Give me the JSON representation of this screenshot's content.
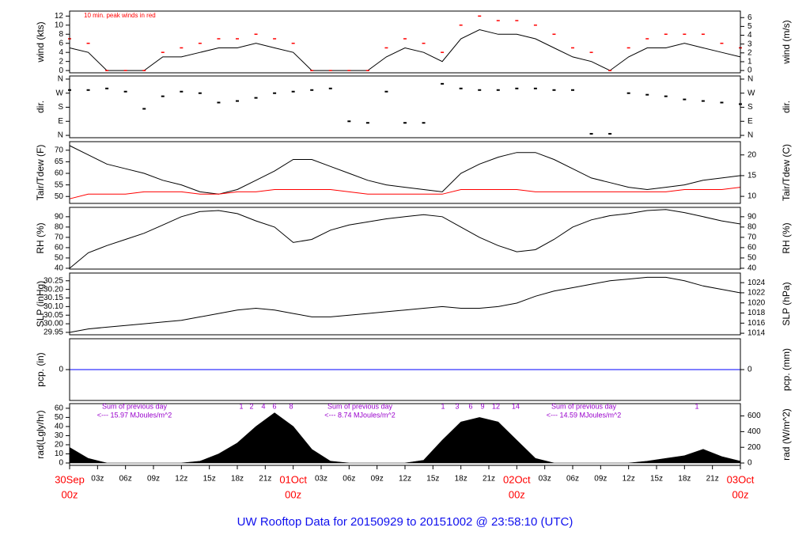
{
  "title": "UW Rooftop Data for 20150929  to  20151002 @ 23:58:10  (UTC)",
  "chart_data": [
    {
      "type": "line",
      "ylabel": "wind (kts)",
      "y2label": "wind (m/s)",
      "annotations": [
        "10 min. peak winds in red"
      ],
      "xlim": [
        0,
        72
      ],
      "ylim": [
        -0.5,
        13.1
      ],
      "yticks": [
        0,
        2,
        4,
        6,
        8,
        10,
        12
      ],
      "y2lim": [
        -0.26,
        6.74
      ],
      "y2ticks": [
        0,
        1,
        2,
        3,
        4,
        5,
        6
      ],
      "x": [
        0,
        2,
        4,
        6,
        8,
        10,
        12,
        14,
        16,
        18,
        20,
        22,
        24,
        26,
        28,
        30,
        32,
        34,
        36,
        38,
        40,
        42,
        44,
        46,
        48,
        50,
        52,
        54,
        56,
        58,
        60,
        62,
        64,
        66,
        68,
        70,
        72
      ],
      "series": [
        {
          "color": "#000000",
          "values": [
            5,
            4,
            0,
            0,
            0,
            3,
            3,
            4,
            5,
            5,
            6,
            5,
            4,
            0,
            0,
            0,
            0,
            3,
            5,
            4,
            2,
            7,
            9,
            8,
            8,
            7,
            5,
            3,
            2,
            0,
            3,
            5,
            5,
            6,
            5,
            4,
            3
          ]
        },
        {
          "color": "#ff0000",
          "marker": "dash",
          "values": [
            7,
            6,
            0,
            0,
            0,
            4,
            5,
            6,
            7,
            7,
            8,
            7,
            6,
            0,
            0,
            0,
            0,
            5,
            7,
            6,
            4,
            10,
            12,
            11,
            11,
            10,
            8,
            5,
            4,
            0,
            5,
            7,
            8,
            8,
            8,
            6,
            5
          ]
        }
      ]
    },
    {
      "type": "scatter",
      "ylabel": "dir.",
      "y2label": "dir.",
      "xlim": [
        0,
        72
      ],
      "ylim": [
        -15,
        380
      ],
      "yticks": [
        {
          "value": 0,
          "label": "N"
        },
        {
          "value": 90,
          "label": "E"
        },
        {
          "value": 180,
          "label": "S"
        },
        {
          "value": 270,
          "label": "W"
        },
        {
          "value": 360,
          "label": "N"
        }
      ],
      "y2lim": [
        -15,
        380
      ],
      "y2ticks": [
        {
          "value": 0,
          "label": "N"
        },
        {
          "value": 90,
          "label": "E"
        },
        {
          "value": 180,
          "label": "S"
        },
        {
          "value": 270,
          "label": "W"
        },
        {
          "value": 360,
          "label": "N"
        }
      ],
      "x": [
        0,
        2,
        4,
        6,
        8,
        10,
        12,
        14,
        16,
        18,
        20,
        22,
        24,
        26,
        28,
        30,
        32,
        34,
        36,
        38,
        40,
        42,
        44,
        46,
        48,
        50,
        52,
        54,
        56,
        58,
        60,
        62,
        64,
        66,
        68,
        70,
        72
      ],
      "series": [
        {
          "color": "#000000",
          "values": [
            290,
            290,
            300,
            280,
            170,
            250,
            280,
            270,
            210,
            220,
            240,
            270,
            280,
            290,
            300,
            90,
            80,
            280,
            80,
            80,
            330,
            300,
            290,
            290,
            300,
            300,
            290,
            290,
            10,
            10,
            270,
            260,
            250,
            230,
            220,
            210,
            200
          ]
        }
      ]
    },
    {
      "type": "line",
      "ylabel": "Tair/Tdew (F)",
      "y2label": "Tair/Tdew (C)",
      "xlim": [
        0,
        72
      ],
      "ylim": [
        47,
        73.7
      ],
      "yticks": [
        50,
        55,
        60,
        65,
        70
      ],
      "y2lim": [
        8.3,
        23.2
      ],
      "y2ticks": [
        10,
        15,
        20
      ],
      "x": [
        0,
        2,
        4,
        6,
        8,
        10,
        12,
        14,
        16,
        18,
        20,
        22,
        24,
        26,
        28,
        30,
        32,
        34,
        36,
        38,
        40,
        42,
        44,
        46,
        48,
        50,
        52,
        54,
        56,
        58,
        60,
        62,
        64,
        66,
        68,
        70,
        72
      ],
      "series": [
        {
          "color": "#000000",
          "values": [
            72,
            68,
            64,
            62,
            60,
            57,
            55,
            52,
            51,
            53,
            57,
            61,
            66,
            66,
            63,
            60,
            57,
            55,
            54,
            53,
            52,
            60,
            64,
            67,
            69,
            69,
            66,
            62,
            58,
            56,
            54,
            53,
            54,
            55,
            57,
            58,
            59
          ]
        },
        {
          "color": "#ff0000",
          "values": [
            49,
            51,
            51,
            51,
            52,
            52,
            52,
            51,
            51,
            52,
            52,
            53,
            53,
            53,
            53,
            52,
            51,
            51,
            51,
            51,
            51,
            53,
            53,
            53,
            53,
            52,
            52,
            52,
            52,
            52,
            52,
            52,
            52,
            53,
            53,
            53,
            54
          ]
        }
      ]
    },
    {
      "type": "line",
      "ylabel": "RH (%)",
      "y2label": "RH (%)",
      "xlim": [
        0,
        72
      ],
      "ylim": [
        39.2,
        99.1
      ],
      "yticks": [
        40,
        50,
        60,
        70,
        80,
        90
      ],
      "y2lim": [
        39.2,
        99.1
      ],
      "y2ticks": [
        40,
        50,
        60,
        70,
        80,
        90
      ],
      "x": [
        0,
        2,
        4,
        6,
        8,
        10,
        12,
        14,
        16,
        18,
        20,
        22,
        24,
        26,
        28,
        30,
        32,
        34,
        36,
        38,
        40,
        42,
        44,
        46,
        48,
        50,
        52,
        54,
        56,
        58,
        60,
        62,
        64,
        66,
        68,
        70,
        72
      ],
      "series": [
        {
          "color": "#000000",
          "values": [
            40,
            55,
            62,
            68,
            74,
            82,
            90,
            95,
            96,
            93,
            86,
            80,
            65,
            68,
            77,
            82,
            85,
            88,
            90,
            92,
            90,
            80,
            70,
            62,
            56,
            58,
            68,
            80,
            87,
            91,
            93,
            96,
            97,
            94,
            90,
            86,
            83
          ]
        }
      ]
    },
    {
      "type": "line",
      "ylabel": "SLP (inHg)",
      "y2label": "SLP (hPa)",
      "xlim": [
        0,
        72
      ],
      "ylim": [
        29.936,
        30.295
      ],
      "yticks": [
        29.95,
        {
          "value": 30,
          "label": "30.00"
        },
        30.05,
        {
          "value": 30.1,
          "label": "30.10"
        },
        30.15,
        {
          "value": 30.2,
          "label": "30.20"
        },
        30.25
      ],
      "y2lim": [
        1013.7,
        1025.9
      ],
      "y2ticks": [
        1014,
        1016,
        1018,
        1020,
        1022,
        1024
      ],
      "x": [
        0,
        2,
        4,
        6,
        8,
        10,
        12,
        14,
        16,
        18,
        20,
        22,
        24,
        26,
        28,
        30,
        32,
        34,
        36,
        38,
        40,
        42,
        44,
        46,
        48,
        50,
        52,
        54,
        56,
        58,
        60,
        62,
        64,
        66,
        68,
        70,
        72
      ],
      "series": [
        {
          "color": "#000000",
          "values": [
            29.95,
            29.97,
            29.98,
            29.99,
            30.0,
            30.01,
            30.02,
            30.04,
            30.06,
            30.08,
            30.09,
            30.08,
            30.06,
            30.04,
            30.04,
            30.05,
            30.06,
            30.07,
            30.08,
            30.09,
            30.1,
            30.09,
            30.09,
            30.1,
            30.12,
            30.16,
            30.19,
            30.21,
            30.23,
            30.25,
            30.26,
            30.27,
            30.27,
            30.25,
            30.22,
            30.2,
            30.18
          ]
        }
      ]
    },
    {
      "type": "line",
      "ylabel": "pcp. (in)",
      "y2label": "pcp. (mm)",
      "xlim": [
        0,
        72
      ],
      "ylim": [
        -1,
        1
      ],
      "yticks": [
        0
      ],
      "y2lim": [
        -1,
        1
      ],
      "y2ticks": [
        0
      ],
      "x": [
        0,
        72
      ],
      "series": [
        {
          "color": "#0000ff",
          "values": [
            0,
            0
          ]
        }
      ]
    },
    {
      "type": "area",
      "ylabel": "rad(Lgly/hr)",
      "y2label": "rad (W/m^2)",
      "annotations": [
        "Sum of previous day",
        "<--- 15.97 MJoules/m^2",
        "Sum of previous day",
        "<--- 8.74 MJoules/m^2",
        "Sum of previous day",
        "<--- 14.59 MJoules/m^2"
      ],
      "hour_marks": [
        [
          1,
          2,
          4,
          6,
          8
        ],
        [
          1,
          3,
          6,
          9,
          12,
          14
        ],
        [
          1
        ]
      ],
      "xlim": [
        0,
        72
      ],
      "ylim": [
        -2.6,
        65.1
      ],
      "yticks": [
        0,
        10,
        20,
        30,
        40,
        50,
        60
      ],
      "y2lim": [
        -30,
        757
      ],
      "y2ticks": [
        0,
        200,
        400,
        600
      ],
      "x": [
        0,
        2,
        4,
        6,
        8,
        10,
        12,
        14,
        16,
        18,
        20,
        22,
        24,
        26,
        28,
        30,
        32,
        34,
        36,
        38,
        40,
        42,
        44,
        46,
        48,
        50,
        52,
        54,
        56,
        58,
        60,
        62,
        64,
        66,
        68,
        70,
        72
      ],
      "series": [
        {
          "color": "#000000",
          "values": [
            17,
            5,
            0,
            0,
            0,
            0,
            0,
            2,
            10,
            22,
            40,
            55,
            40,
            15,
            2,
            0,
            0,
            0,
            0,
            3,
            25,
            45,
            50,
            45,
            25,
            5,
            0,
            0,
            0,
            0,
            0,
            2,
            5,
            8,
            15,
            7,
            2
          ]
        }
      ],
      "xticks": [
        {
          "value": 0,
          "label": "00z"
        },
        {
          "value": 3,
          "label": "03z"
        },
        {
          "value": 6,
          "label": "06z"
        },
        {
          "value": 9,
          "label": "09z"
        },
        {
          "value": 12,
          "label": "12z"
        },
        {
          "value": 15,
          "label": "15z"
        },
        {
          "value": 18,
          "label": "18z"
        },
        {
          "value": 21,
          "label": "21z"
        },
        {
          "value": 24,
          "label": "00z"
        },
        {
          "value": 27,
          "label": "03z"
        },
        {
          "value": 30,
          "label": "06z"
        },
        {
          "value": 33,
          "label": "09z"
        },
        {
          "value": 36,
          "label": "12z"
        },
        {
          "value": 39,
          "label": "15z"
        },
        {
          "value": 42,
          "label": "18z"
        },
        {
          "value": 45,
          "label": "21z"
        },
        {
          "value": 48,
          "label": "00z"
        },
        {
          "value": 51,
          "label": "03z"
        },
        {
          "value": 54,
          "label": "06z"
        },
        {
          "value": 57,
          "label": "09z"
        },
        {
          "value": 60,
          "label": "12z"
        },
        {
          "value": 63,
          "label": "15z"
        },
        {
          "value": 66,
          "label": "18z"
        },
        {
          "value": 69,
          "label": "21z"
        },
        {
          "value": 72,
          "label": "00z"
        }
      ],
      "date_labels": [
        {
          "value": 0,
          "label": "30Sep"
        },
        {
          "value": 24,
          "label": "01Oct"
        },
        {
          "value": 48,
          "label": "02Oct"
        },
        {
          "value": 72,
          "label": "03Oct"
        }
      ]
    }
  ]
}
